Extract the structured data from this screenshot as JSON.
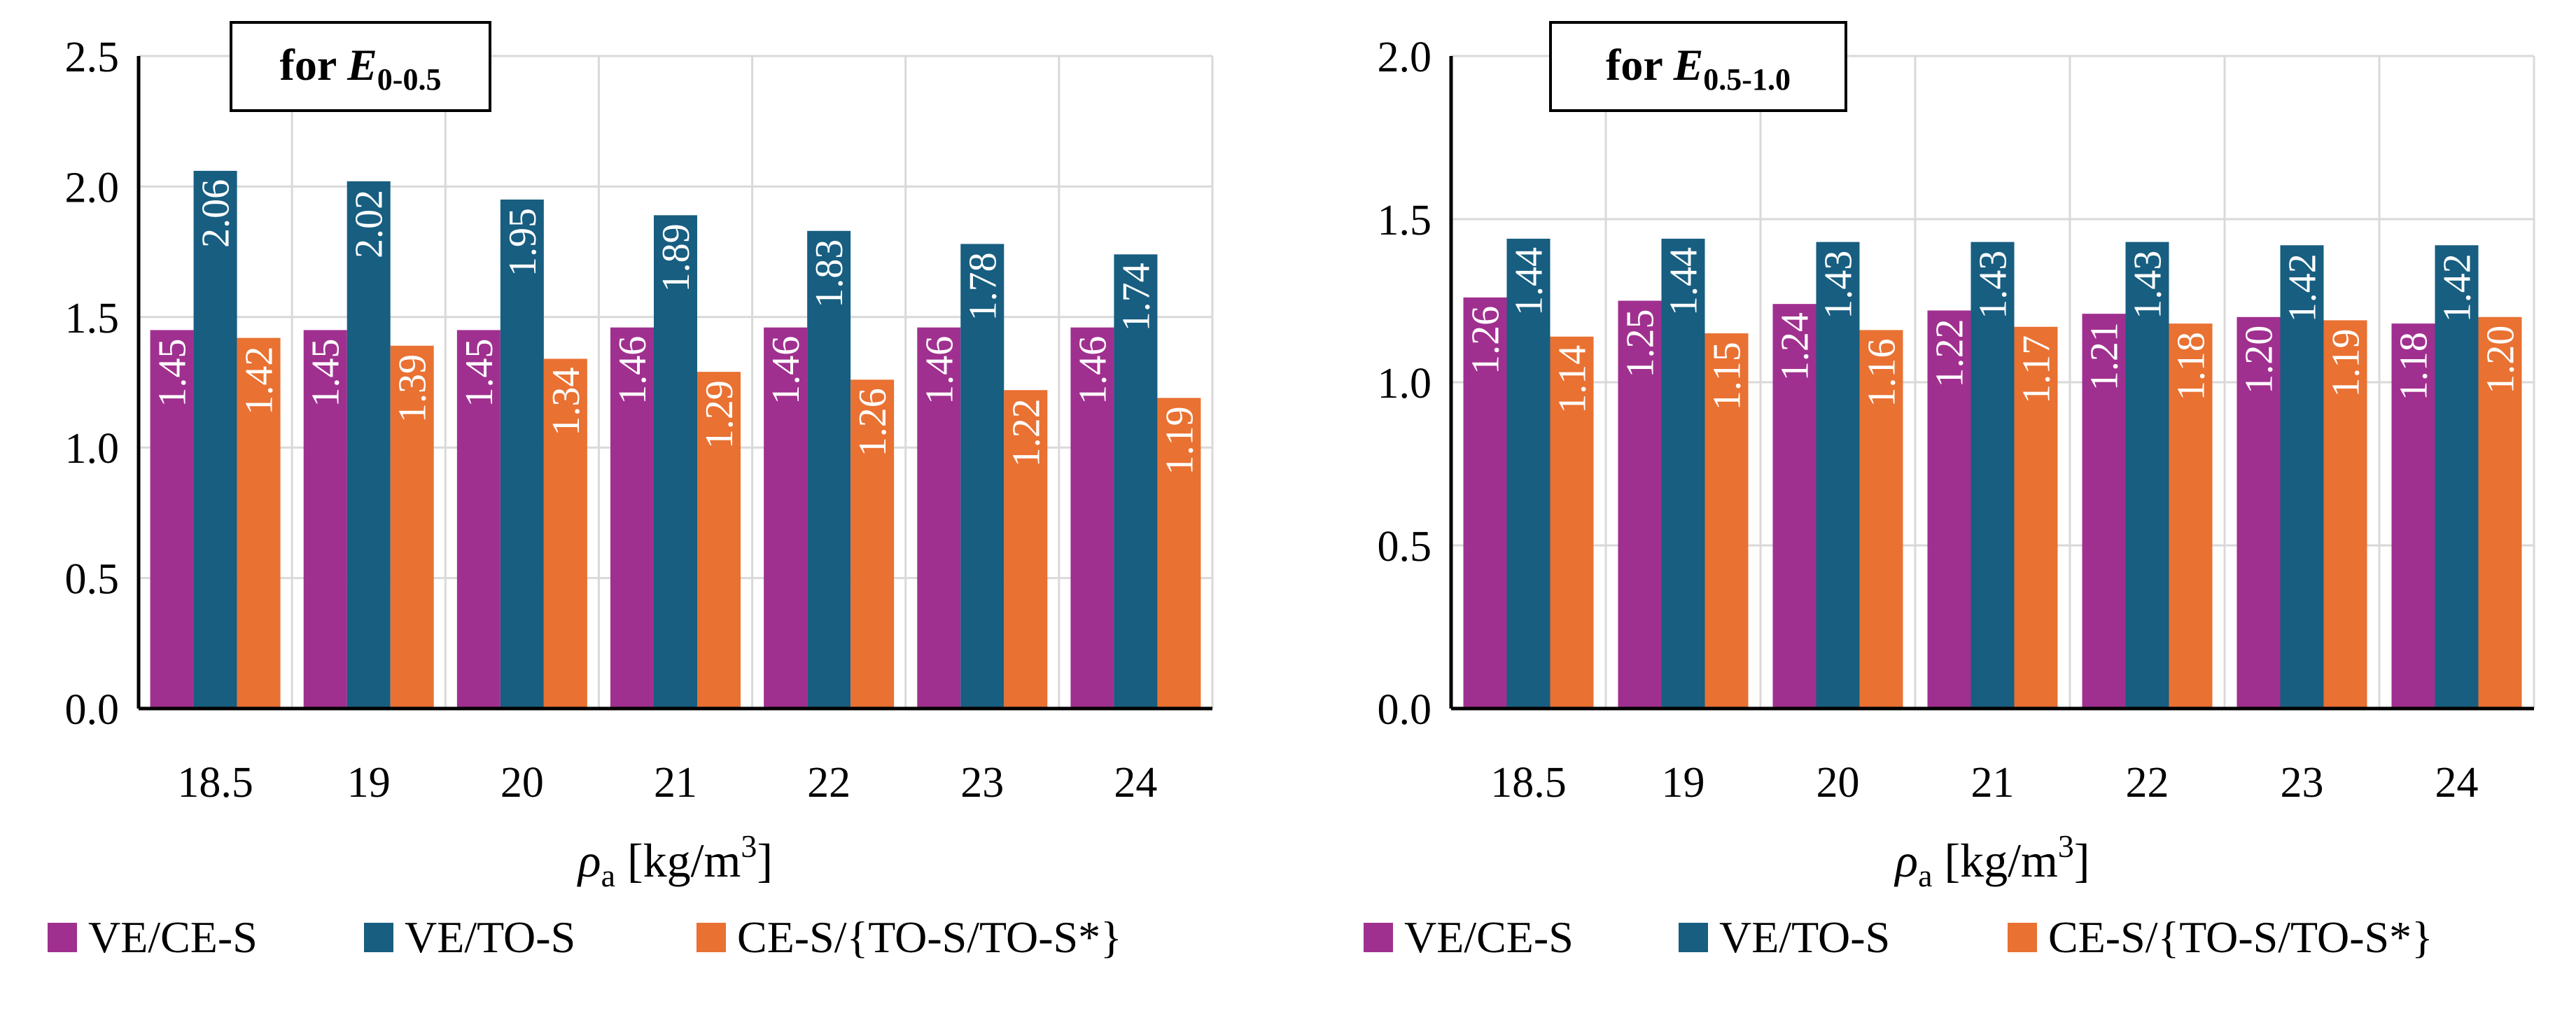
{
  "chart_data": [
    {
      "type": "bar",
      "title_main": "for ",
      "title_var": "E",
      "title_sub": "0-0.5",
      "categories": [
        "18.5",
        "19",
        "20",
        "21",
        "22",
        "23",
        "24"
      ],
      "xlabel_symbol": "ρ",
      "xlabel_sub": "a",
      "xlabel_unit": " [kg/m",
      "xlabel_sup": "3",
      "xlabel_close": "]",
      "ylim": [
        0,
        2.5
      ],
      "yticks": [
        "0.0",
        "0.5",
        "1.0",
        "1.5",
        "2.0",
        "2.5"
      ],
      "grid": true,
      "legend_position": "bottom",
      "series": [
        {
          "name": "VE/CE-S",
          "color": "#A0308F",
          "values": [
            1.45,
            1.45,
            1.45,
            1.46,
            1.46,
            1.46,
            1.46
          ],
          "labels": [
            "1.45",
            "1.45",
            "1.45",
            "1.46",
            "1.46",
            "1.46",
            "1.46"
          ]
        },
        {
          "name": "VE/TO-S",
          "color": "#175E81",
          "values": [
            2.06,
            2.02,
            1.95,
            1.89,
            1.83,
            1.78,
            1.74
          ],
          "labels": [
            "2.06",
            "2.02",
            "1.95",
            "1.89",
            "1.83",
            "1.78",
            "1.74"
          ]
        },
        {
          "name": "CE-S/{TO-S/TO-S*}",
          "color": "#E97132",
          "values": [
            1.42,
            1.39,
            1.34,
            1.29,
            1.26,
            1.22,
            1.19
          ],
          "labels": [
            "1.42",
            "1.39",
            "1.34",
            "1.29",
            "1.26",
            "1.22",
            "1.19"
          ]
        }
      ]
    },
    {
      "type": "bar",
      "title_main": "for ",
      "title_var": "E",
      "title_sub": "0.5-1.0",
      "categories": [
        "18.5",
        "19",
        "20",
        "21",
        "22",
        "23",
        "24"
      ],
      "xlabel_symbol": "ρ",
      "xlabel_sub": "a",
      "xlabel_unit": " [kg/m",
      "xlabel_sup": "3",
      "xlabel_close": "]",
      "ylim": [
        0,
        2.0
      ],
      "yticks": [
        "0.0",
        "0.5",
        "1.0",
        "1.5",
        "2.0"
      ],
      "grid": true,
      "legend_position": "bottom",
      "series": [
        {
          "name": "VE/CE-S",
          "color": "#A0308F",
          "values": [
            1.26,
            1.25,
            1.24,
            1.22,
            1.21,
            1.2,
            1.18
          ],
          "labels": [
            "1.26",
            "1.25",
            "1.24",
            "1.22",
            "1.21",
            "1.20",
            "1.18"
          ]
        },
        {
          "name": "VE/TO-S",
          "color": "#175E81",
          "values": [
            1.44,
            1.44,
            1.43,
            1.43,
            1.43,
            1.42,
            1.42
          ],
          "labels": [
            "1.44",
            "1.44",
            "1.43",
            "1.43",
            "1.43",
            "1.42",
            "1.42"
          ]
        },
        {
          "name": "CE-S/{TO-S/TO-S*}",
          "color": "#E97132",
          "values": [
            1.14,
            1.15,
            1.16,
            1.17,
            1.18,
            1.19,
            1.2
          ],
          "labels": [
            "1.14",
            "1.15",
            "1.16",
            "1.17",
            "1.18",
            "1.19",
            "1.20"
          ]
        }
      ]
    }
  ]
}
